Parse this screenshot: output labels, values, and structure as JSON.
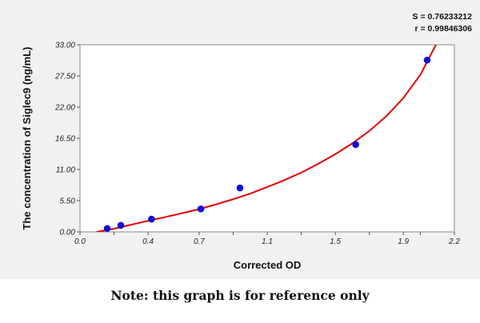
{
  "stats": {
    "s_text": "S = 0.76233212",
    "r_text": "r = 0.99846306"
  },
  "note": "Note: this graph is for reference only",
  "colors": {
    "curve": "#e00000",
    "points": "#1010d0",
    "background": "#f1f1f1",
    "plot_area": "#ffffff"
  },
  "chart_data": {
    "type": "scatter",
    "title": "",
    "xlabel": "Corrected OD",
    "ylabel": "The concentration of Siglec9 (ng/mL)",
    "xlim": [
      0.0,
      2.2
    ],
    "ylim": [
      0.0,
      33.0
    ],
    "x_ticks": [
      "0.0",
      "0.2",
      "0.4",
      "0.7",
      "0.9",
      "1.1",
      "1.3",
      "1.5",
      "1.7",
      "1.9",
      "2.0",
      "2.2"
    ],
    "x_tick_positions": [
      0.0,
      0.2,
      0.4,
      0.7,
      0.9,
      1.1,
      1.3,
      1.5,
      1.7,
      1.9,
      2.0,
      2.2
    ],
    "x_tick_labeled": [
      true,
      false,
      true,
      true,
      false,
      true,
      false,
      true,
      false,
      true,
      false,
      true
    ],
    "y_ticks": [
      "0.00",
      "5.50",
      "11.00",
      "16.50",
      "22.00",
      "27.50",
      "33.00"
    ],
    "y_tick_values": [
      0.0,
      5.5,
      11.0,
      16.5,
      22.0,
      27.5,
      33.0
    ],
    "series": [
      {
        "type": "scatter",
        "x": [
          0.16,
          0.24,
          0.42,
          0.71,
          0.94,
          1.62,
          2.04
        ],
        "y": [
          0.6,
          1.15,
          2.25,
          4.05,
          7.75,
          15.4,
          30.3
        ]
      },
      {
        "type": "line",
        "x": [
          0.1,
          0.2,
          0.3,
          0.4,
          0.5,
          0.6,
          0.7,
          0.8,
          0.9,
          1.0,
          1.1,
          1.2,
          1.3,
          1.4,
          1.5,
          1.6,
          1.7,
          1.8,
          1.9,
          2.0,
          2.05,
          2.1
        ],
        "y": [
          0.0,
          0.55,
          1.25,
          1.95,
          2.6,
          3.3,
          4.0,
          4.85,
          5.75,
          6.75,
          7.9,
          9.1,
          10.45,
          12.0,
          13.7,
          15.6,
          17.8,
          20.4,
          23.6,
          27.7,
          30.6,
          33.5
        ]
      }
    ],
    "grid": false,
    "legend": "none"
  }
}
